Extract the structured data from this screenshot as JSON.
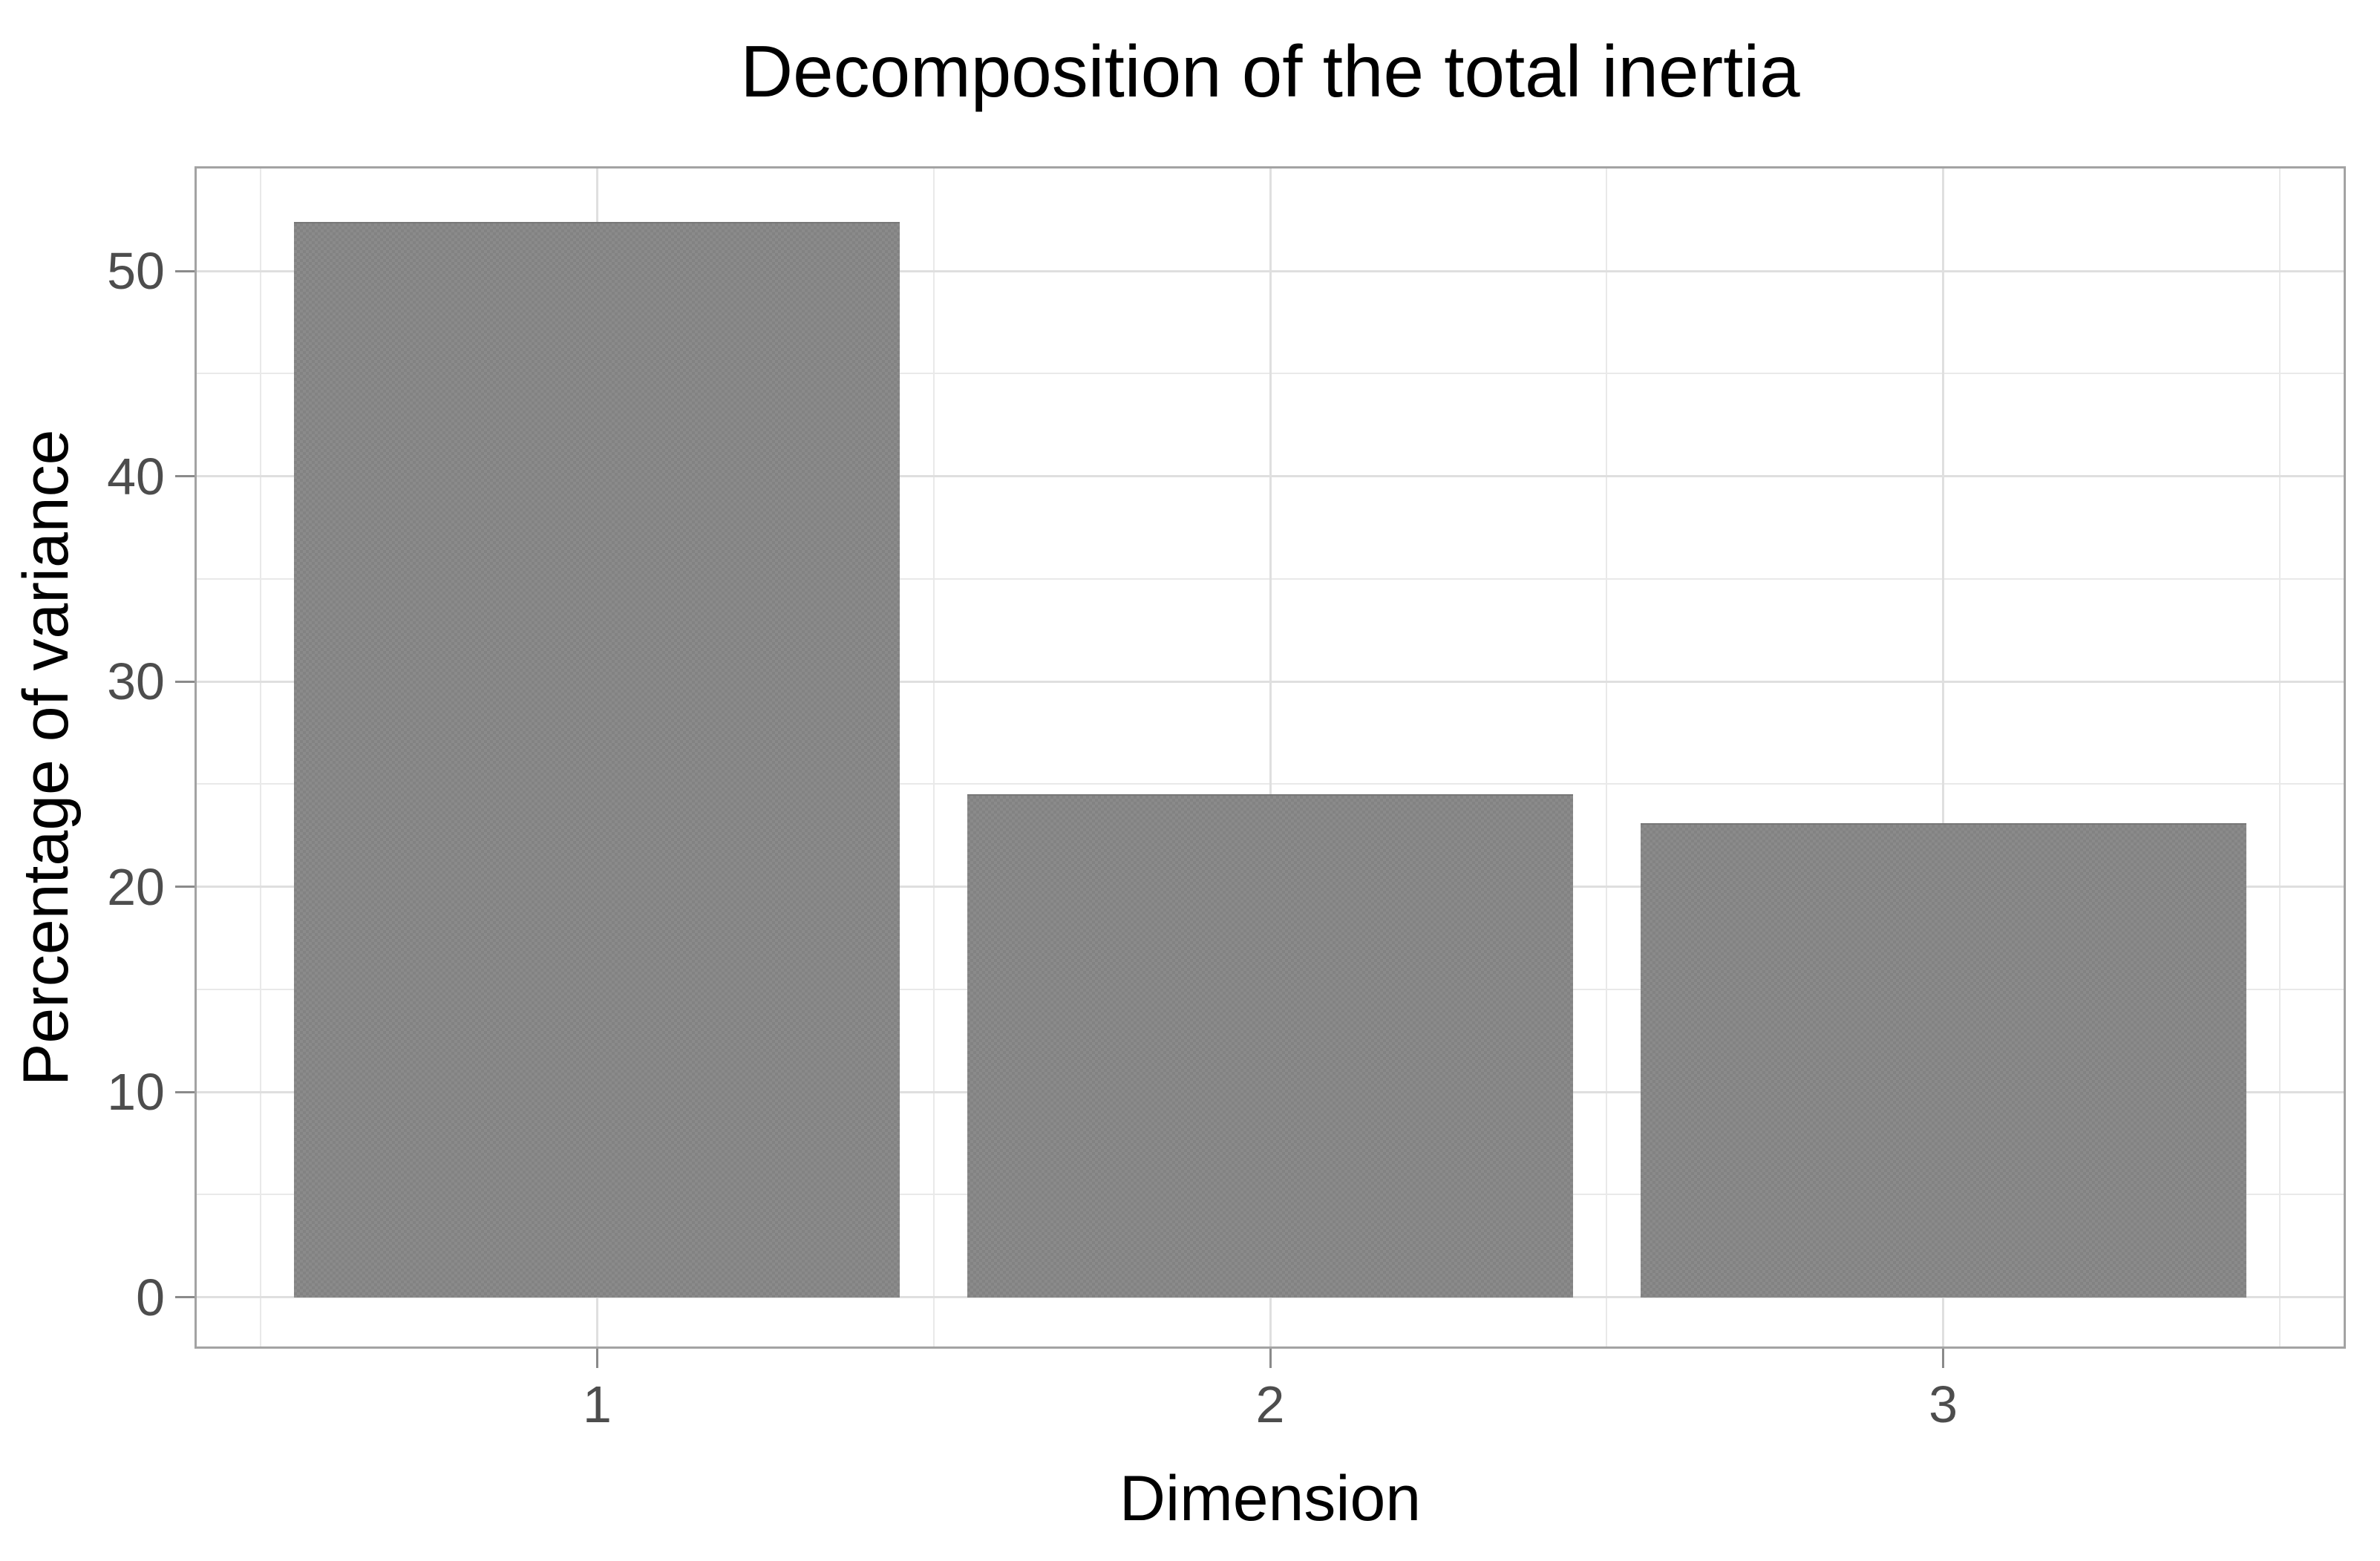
{
  "chart_data": {
    "type": "bar",
    "title": "Decomposition of the total inertia",
    "xlabel": "Dimension",
    "ylabel": "Percentage of variance",
    "categories": [
      "1",
      "2",
      "3"
    ],
    "values": [
      52.4,
      24.5,
      23.1
    ],
    "x_positions": [
      1,
      2,
      3
    ],
    "x_minor_positions": [
      0.5,
      1.5,
      2.5,
      3.5
    ],
    "y_major_ticks": [
      0,
      10,
      20,
      30,
      40,
      50
    ],
    "y_minor_ticks": [
      5,
      15,
      25,
      35,
      45,
      55
    ],
    "ylim": [
      -2.4,
      55.0
    ],
    "xlim": [
      0.405,
      3.595
    ],
    "bar_width": 0.9,
    "grid": "on",
    "legend": "none",
    "bar_fill": "#828282",
    "bar_fill_alt": "#8b8b8b",
    "bar_top_edge": "#777777",
    "panel_bg": "#ffffff",
    "outer_bg": "#ffffff",
    "grid_major_color": "#dfdfdf",
    "grid_minor_color": "#e9e9e9",
    "panel_border_color": "#a3a3a3",
    "tick_color": "#8a8a8a",
    "axis_text_color": "#4d4d4d",
    "title_color": "#000000"
  }
}
